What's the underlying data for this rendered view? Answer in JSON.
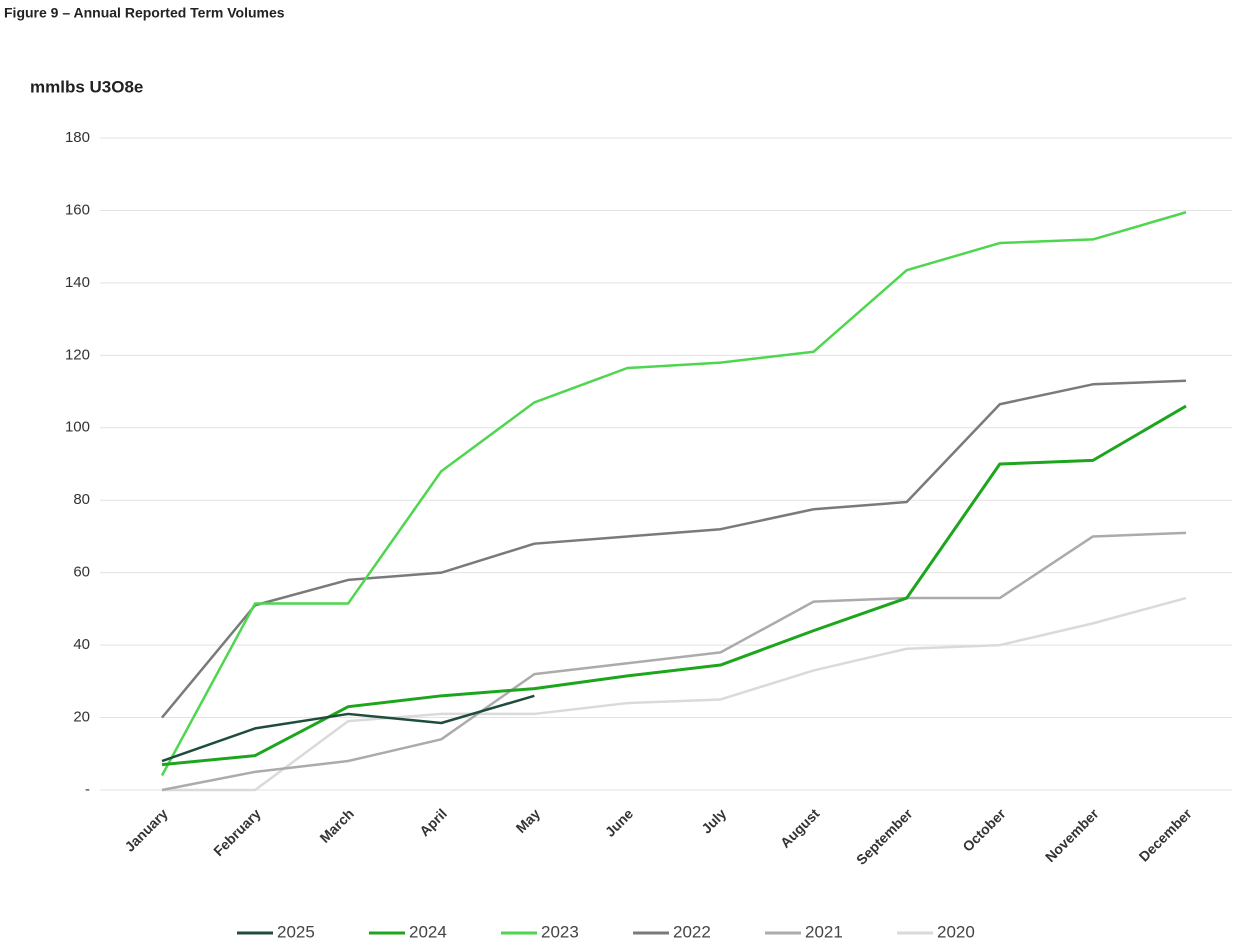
{
  "chart_data": {
    "type": "line",
    "title": "Figure 9 – Annual Reported Term Volumes",
    "y_label": "mmlbs U3O8e",
    "categories": [
      "January",
      "February",
      "March",
      "April",
      "May",
      "June",
      "July",
      "August",
      "September",
      "October",
      "November",
      "December"
    ],
    "series": [
      {
        "name": "2025",
        "color": "#1e4d3a",
        "values": [
          8,
          17,
          21,
          18.5,
          26,
          null,
          null,
          null,
          null,
          null,
          null,
          null
        ]
      },
      {
        "name": "2024",
        "color": "#1ea51e",
        "values": [
          7,
          9.5,
          23,
          26,
          28,
          31.5,
          34.5,
          44,
          53,
          90,
          91,
          106
        ]
      },
      {
        "name": "2023",
        "color": "#4fd64f",
        "values": [
          4,
          51.5,
          51.5,
          88,
          107,
          116.5,
          118,
          121,
          143.5,
          151,
          152,
          159.5
        ]
      },
      {
        "name": "2022",
        "color": "#7a7a7a",
        "values": [
          20,
          51,
          58,
          60,
          68,
          70,
          72,
          77.5,
          79.5,
          106.5,
          112,
          113
        ]
      },
      {
        "name": "2021",
        "color": "#ababab",
        "values": [
          0,
          5,
          8,
          14,
          32,
          35,
          38,
          52,
          53,
          53,
          70,
          71
        ]
      },
      {
        "name": "2020",
        "color": "#dadada",
        "values": [
          0,
          0,
          19,
          21,
          21,
          24,
          25,
          33,
          39,
          40,
          46,
          53
        ]
      }
    ],
    "ylim": [
      0,
      180
    ],
    "yticks": [
      {
        "value": 0,
        "label": "-"
      },
      20,
      40,
      60,
      80,
      100,
      120,
      140,
      160,
      180
    ],
    "grid": true,
    "legend": "bottom"
  }
}
